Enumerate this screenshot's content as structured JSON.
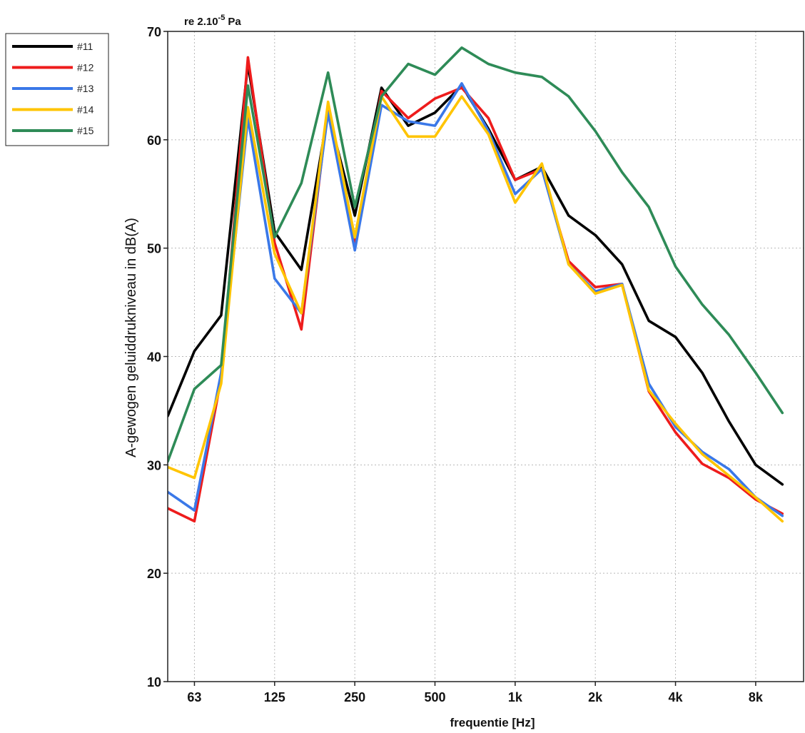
{
  "chart_data": {
    "type": "line",
    "reference_label": "re 2.10",
    "reference_exponent": "-5",
    "reference_unit": "Pa",
    "xlabel": "frequentie [Hz]",
    "ylabel": "A-gewogen geluiddrukniveau in dB(A)",
    "ylim": [
      10,
      70
    ],
    "y_ticks": [
      10,
      20,
      30,
      40,
      50,
      60,
      70
    ],
    "x_tick_labels": [
      "63",
      "125",
      "250",
      "500",
      "1k",
      "2k",
      "4k",
      "8k"
    ],
    "x": [
      "50",
      "63",
      "80",
      "100",
      "125",
      "160",
      "200",
      "250",
      "315",
      "400",
      "500",
      "630",
      "800",
      "1k",
      "1.25k",
      "1.6k",
      "2k",
      "2.5k",
      "3.15k",
      "4k",
      "5k",
      "6.3k",
      "8k",
      "10k"
    ],
    "grid": true,
    "legend_position": "top-left-outside",
    "series": [
      {
        "name": "#11",
        "color": "#000000",
        "values": [
          34.5,
          40.5,
          43.8,
          67.0,
          51.5,
          48.0,
          62.5,
          53.0,
          64.8,
          61.3,
          62.5,
          65.0,
          61.0,
          56.3,
          57.5,
          53.0,
          51.2,
          48.5,
          43.3,
          41.8,
          38.5,
          34.0,
          30.0,
          28.2
        ]
      },
      {
        "name": "#12",
        "color": "#ee1c1c",
        "values": [
          26.0,
          24.8,
          38.0,
          67.6,
          50.5,
          42.5,
          63.0,
          50.5,
          64.5,
          62.0,
          63.8,
          64.8,
          62.0,
          56.3,
          57.3,
          48.8,
          46.4,
          46.7,
          36.8,
          33.0,
          30.1,
          28.8,
          26.8,
          25.5
        ]
      },
      {
        "name": "#13",
        "color": "#3a78e8",
        "values": [
          27.5,
          25.8,
          38.5,
          62.0,
          47.2,
          44.0,
          62.5,
          49.8,
          63.2,
          61.7,
          61.3,
          65.2,
          60.8,
          55.0,
          57.3,
          48.5,
          46.0,
          46.7,
          37.5,
          33.5,
          31.2,
          29.6,
          27.0,
          25.3
        ]
      },
      {
        "name": "#14",
        "color": "#ffc400",
        "values": [
          29.8,
          28.8,
          37.5,
          63.0,
          49.5,
          44.0,
          63.5,
          51.0,
          64.0,
          60.3,
          60.3,
          64.0,
          60.5,
          54.2,
          57.8,
          48.5,
          45.8,
          46.6,
          36.9,
          33.8,
          31.0,
          29.0,
          27.0,
          24.8
        ]
      },
      {
        "name": "#15",
        "color": "#2e8b57",
        "values": [
          30.3,
          37.0,
          39.2,
          65.0,
          51.0,
          56.0,
          66.2,
          53.8,
          64.0,
          67.0,
          66.0,
          68.5,
          67.0,
          66.2,
          65.8,
          64.0,
          60.8,
          57.0,
          53.8,
          48.3,
          44.8,
          42.0,
          38.5,
          34.8
        ]
      }
    ]
  }
}
